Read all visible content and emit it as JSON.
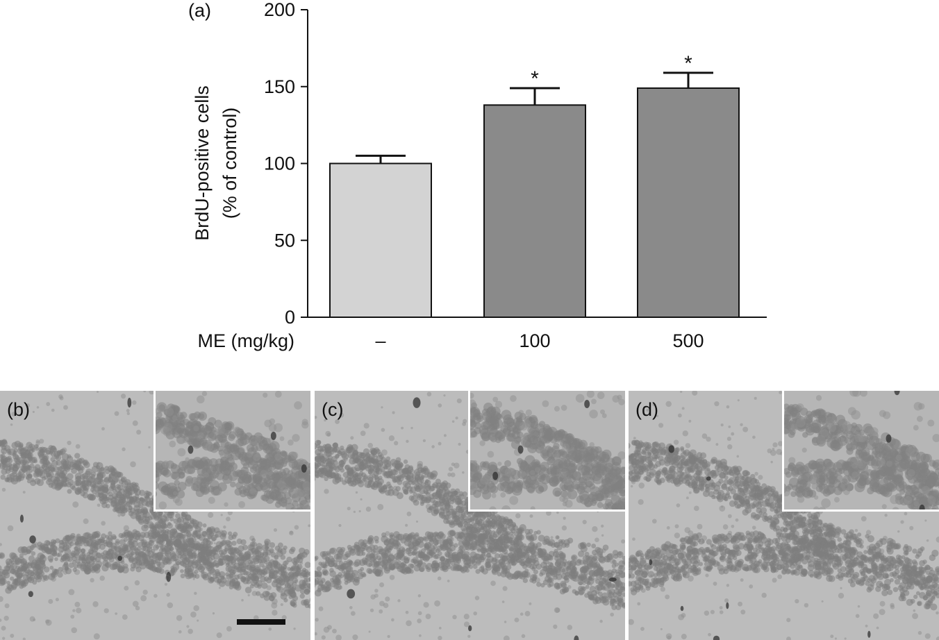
{
  "chart_data": {
    "type": "bar",
    "panel_label": "(a)",
    "ylabel_line1": "BrdU-positive cells",
    "ylabel_line2": "(% of control)",
    "xlabel": "ME (mg/kg)",
    "categories": [
      "–",
      "100",
      "500"
    ],
    "values": [
      100,
      138,
      149
    ],
    "errors": [
      5,
      11,
      10
    ],
    "significance": [
      "",
      "*",
      "*"
    ],
    "bar_colors": [
      "#d3d3d3",
      "#8a8a8a",
      "#8a8a8a"
    ],
    "ylim": [
      0,
      200
    ],
    "yticks": [
      0,
      50,
      100,
      150,
      200
    ]
  },
  "micrographs": [
    {
      "label": "(b)"
    },
    {
      "label": "(c)"
    },
    {
      "label": "(d)"
    }
  ]
}
